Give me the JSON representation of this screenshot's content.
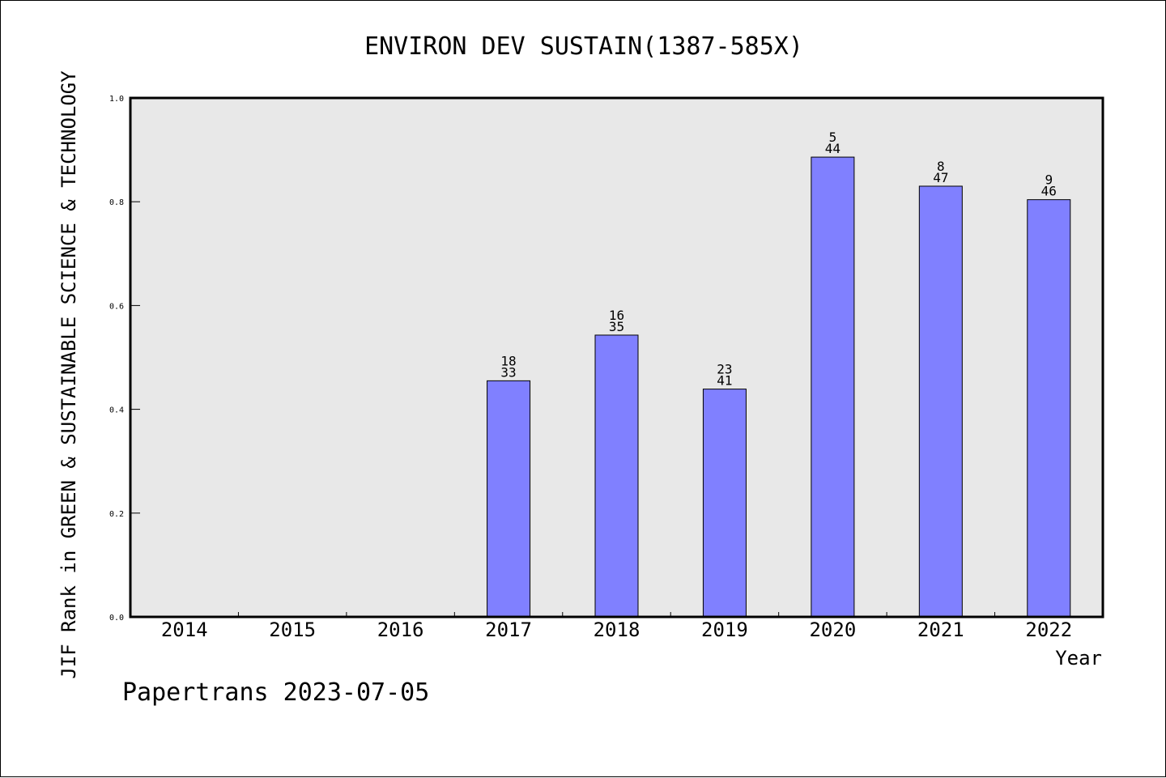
{
  "chart_data": {
    "type": "bar",
    "title": "ENVIRON DEV SUSTAIN(1387-585X)",
    "xlabel": "Year",
    "ylabel": "JIF Rank in GREEN & SUSTAINABLE SCIENCE & TECHNOLOGY",
    "ylim": [
      0,
      1.0
    ],
    "yticks": [
      "0.0",
      "0.2",
      "0.4",
      "0.6",
      "0.8",
      "1.0"
    ],
    "grid": false,
    "categories": [
      "2014",
      "2015",
      "2016",
      "2017",
      "2018",
      "2019",
      "2020",
      "2021",
      "2022"
    ],
    "values": [
      null,
      null,
      null,
      0.455,
      0.543,
      0.439,
      0.886,
      0.83,
      0.804
    ],
    "rank_labels": [
      "",
      "",
      "",
      "18",
      "16",
      "23",
      "5",
      "8",
      "9"
    ],
    "total_labels": [
      "",
      "",
      "",
      "33",
      "35",
      "41",
      "44",
      "47",
      "46"
    ],
    "colors": {
      "bar": "#8080ff",
      "plot_bg": "#e8e8e8"
    }
  },
  "footer": "Papertrans 2023-07-05"
}
